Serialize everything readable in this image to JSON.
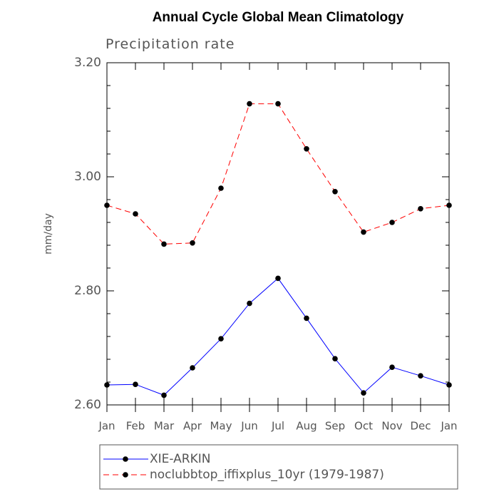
{
  "chart_data": {
    "type": "line",
    "title": "Annual Cycle Global Mean Climatology",
    "subtitle": "Precipitation rate",
    "ylabel": "mm/day",
    "xlabel": "",
    "categories": [
      "Jan",
      "Feb",
      "Mar",
      "Apr",
      "May",
      "Jun",
      "Jul",
      "Aug",
      "Sep",
      "Oct",
      "Nov",
      "Dec",
      "Jan"
    ],
    "ylim": [
      2.6,
      3.2
    ],
    "yticks": [
      2.6,
      2.8,
      3.0,
      3.2
    ],
    "ytick_labels": [
      "2.60",
      "2.80",
      "3.00",
      "3.20"
    ],
    "grid": false,
    "legend_position": "bottom",
    "series": [
      {
        "name": "XIE-ARKIN",
        "color": "#0000ff",
        "line_style": "solid",
        "marker": "filled-circle",
        "values": [
          2.635,
          2.636,
          2.617,
          2.665,
          2.716,
          2.778,
          2.822,
          2.752,
          2.681,
          2.621,
          2.666,
          2.651,
          2.635
        ]
      },
      {
        "name": "noclubbtop_iffixplus_10yr (1979-1987)",
        "color": "#ff0000",
        "line_style": "dashed",
        "marker": "filled-circle",
        "values": [
          2.95,
          2.935,
          2.882,
          2.884,
          2.98,
          3.128,
          3.128,
          3.049,
          2.974,
          2.903,
          2.92,
          2.944,
          2.95
        ]
      }
    ]
  }
}
